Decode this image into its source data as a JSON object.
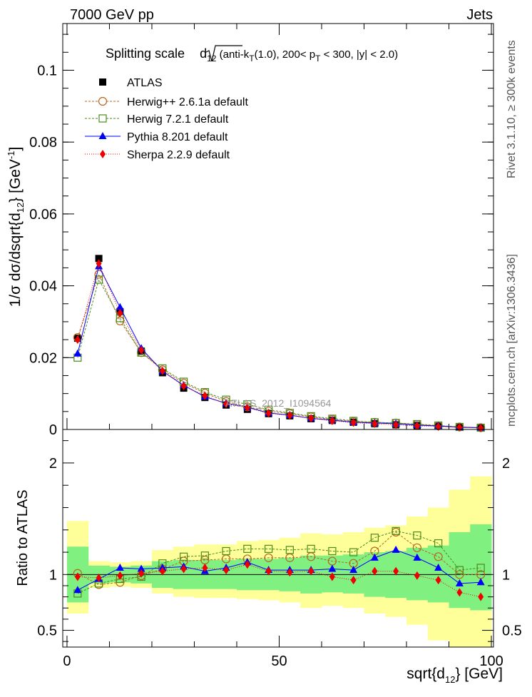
{
  "header": {
    "left": "7000 GeV pp",
    "right": "Jets"
  },
  "side_labels": {
    "top": "Rivet 3.1.10, ≥ 300k events",
    "bottom": "mcplots.cern.ch [arXiv:1306.3436]"
  },
  "watermark": "ATLAS_2012_I1094564",
  "colors": {
    "green_band": "#80f080",
    "yellow_band": "#ffff99"
  },
  "chart_data": [
    {
      "type": "line",
      "name": "main",
      "title": "Splitting scale √d12 (anti-kT(1.0), 200< pT < 300, |y| < 2.0)",
      "title_parts": {
        "pre": "Splitting scale ",
        "d": "d",
        "d_sub": "12",
        "a": " (anti-k",
        "a_sub": "T",
        "b": "(1.0), 200< p",
        "b_sub": "T",
        "c": " < 300, |y| < 2.0)"
      },
      "ylabel": "1/σ dσ/dsqrt{d12} [GeV⁻¹]",
      "ylabel_parts": {
        "pre": "1/σ dσ/dsqrt{d",
        "sub": "12",
        "mid": "} [GeV",
        "sup": "-1",
        "post": "]"
      },
      "xlim": [
        -1,
        100.5
      ],
      "ylim": [
        0,
        0.113
      ],
      "yticks": [
        0,
        0.02,
        0.04,
        0.06,
        0.08,
        0.1
      ],
      "ytick_labels": [
        "0",
        "0.02",
        "0.04",
        "0.06",
        "0.08",
        "0.1"
      ],
      "x": [
        2.5,
        7.5,
        12.5,
        17.5,
        22.5,
        27.5,
        32.5,
        37.5,
        42.5,
        47.5,
        52.5,
        57.5,
        62.5,
        67.5,
        72.5,
        77.5,
        82.5,
        87.5,
        92.5,
        97.5
      ],
      "series": [
        {
          "name": "ATLAS",
          "color": "#000000",
          "marker": "square-filled",
          "values": [
            0.0254,
            0.0476,
            0.0328,
            0.0218,
            0.0158,
            0.0115,
            0.0089,
            0.0068,
            0.0056,
            0.0044,
            0.0038,
            0.003,
            0.0025,
            0.002,
            0.0016,
            0.0013,
            0.0011,
            0.0009,
            0.0007,
            0.0005
          ]
        },
        {
          "name": "Herwig++ 2.6.1a default",
          "color": "#b5651d",
          "marker": "circle-open",
          "values": [
            0.0256,
            0.0432,
            0.0302,
            0.0214,
            0.0166,
            0.0129,
            0.0101,
            0.0078,
            0.0063,
            0.0051,
            0.0044,
            0.0035,
            0.0028,
            0.0022,
            0.002,
            0.0018,
            0.0014,
            0.001,
            0.0007,
            0.0005
          ]
        },
        {
          "name": "Herwig 7.2.1 default",
          "color": "#4b8b1a",
          "marker": "square-open",
          "values": [
            0.02,
            0.0417,
            0.031,
            0.0214,
            0.017,
            0.0133,
            0.0104,
            0.0083,
            0.007,
            0.0055,
            0.0046,
            0.0037,
            0.003,
            0.0024,
            0.002,
            0.0018,
            0.0015,
            0.0011,
            0.0007,
            0.0005
          ]
        },
        {
          "name": "Pythia 8.201 default",
          "color": "#0000ff",
          "marker": "triangle-filled",
          "values": [
            0.0211,
            0.0454,
            0.034,
            0.0226,
            0.0162,
            0.0123,
            0.0091,
            0.0073,
            0.0062,
            0.0046,
            0.004,
            0.0031,
            0.0026,
            0.002,
            0.0018,
            0.0016,
            0.0012,
            0.001,
            0.0006,
            0.0005
          ]
        },
        {
          "name": "Sherpa 2.2.9 default",
          "color": "#ee0000",
          "marker": "diamond-filled",
          "values": [
            0.025,
            0.0462,
            0.0324,
            0.0221,
            0.0163,
            0.0121,
            0.0094,
            0.0071,
            0.0061,
            0.0045,
            0.0039,
            0.0031,
            0.0024,
            0.0019,
            0.0016,
            0.0013,
            0.001,
            0.0008,
            0.0006,
            0.0004
          ]
        }
      ]
    },
    {
      "type": "line",
      "name": "ratio",
      "ylabel": "Ratio to ATLAS",
      "xlabel": "sqrt{d12} [GeV]",
      "xlabel_parts": {
        "pre": "sqrt{d",
        "sub": "12",
        "post": "} [GeV]"
      },
      "xlim": [
        -1,
        100.5
      ],
      "ylim": [
        0.35,
        2.3
      ],
      "xticks": [
        0,
        50,
        100
      ],
      "xtick_labels": [
        "0",
        "50",
        "100"
      ],
      "yticks": [
        0.5,
        1,
        2
      ],
      "ytick_labels": [
        "0.5",
        "1",
        "2"
      ],
      "x": [
        2.5,
        7.5,
        12.5,
        17.5,
        22.5,
        27.5,
        32.5,
        37.5,
        42.5,
        47.5,
        52.5,
        57.5,
        62.5,
        67.5,
        72.5,
        77.5,
        82.5,
        87.5,
        92.5,
        97.5
      ],
      "band_edges": [
        0,
        5,
        10,
        15,
        20,
        25,
        30,
        35,
        40,
        45,
        50,
        55,
        60,
        65,
        70,
        75,
        80,
        85,
        90,
        95,
        100
      ],
      "band_inner": [
        [
          0.75,
          1.25
        ],
        [
          0.92,
          1.08
        ],
        [
          0.93,
          1.07
        ],
        [
          0.92,
          1.08
        ],
        [
          0.88,
          1.12
        ],
        [
          0.87,
          1.13
        ],
        [
          0.87,
          1.13
        ],
        [
          0.87,
          1.13
        ],
        [
          0.86,
          1.14
        ],
        [
          0.86,
          1.14
        ],
        [
          0.85,
          1.15
        ],
        [
          0.83,
          1.17
        ],
        [
          0.84,
          1.17
        ],
        [
          0.83,
          1.18
        ],
        [
          0.8,
          1.2
        ],
        [
          0.79,
          1.21
        ],
        [
          0.77,
          1.24
        ],
        [
          0.75,
          1.26
        ],
        [
          0.7,
          1.38
        ],
        [
          0.68,
          1.45
        ]
      ],
      "band_outer": [
        [
          0.65,
          1.48
        ],
        [
          0.88,
          1.12
        ],
        [
          0.89,
          1.11
        ],
        [
          0.88,
          1.12
        ],
        [
          0.83,
          1.22
        ],
        [
          0.8,
          1.25
        ],
        [
          0.79,
          1.27
        ],
        [
          0.79,
          1.27
        ],
        [
          0.78,
          1.3
        ],
        [
          0.77,
          1.31
        ],
        [
          0.75,
          1.33
        ],
        [
          0.7,
          1.37
        ],
        [
          0.72,
          1.36
        ],
        [
          0.7,
          1.38
        ],
        [
          0.65,
          1.42
        ],
        [
          0.62,
          1.44
        ],
        [
          0.55,
          1.52
        ],
        [
          0.41,
          1.6
        ],
        [
          0.35,
          1.76
        ],
        [
          0.35,
          1.88
        ]
      ],
      "series": [
        {
          "name": "Herwig++ 2.6.1a default",
          "color": "#b5651d",
          "marker": "circle-open",
          "values": [
            1.01,
            0.91,
            0.93,
            0.99,
            1.05,
            1.12,
            1.13,
            1.14,
            1.14,
            1.15,
            1.15,
            1.16,
            1.12,
            1.1,
            1.21,
            1.38,
            1.24,
            1.16,
            1.0,
            1.0
          ]
        },
        {
          "name": "Herwig 7.2.1 default",
          "color": "#4b8b1a",
          "marker": "square-open",
          "values": [
            0.83,
            0.92,
            0.96,
            0.98,
            1.1,
            1.16,
            1.17,
            1.21,
            1.23,
            1.23,
            1.22,
            1.23,
            1.21,
            1.2,
            1.33,
            1.39,
            1.35,
            1.28,
            1.04,
            1.06
          ]
        },
        {
          "name": "Pythia 8.201 default",
          "color": "#0000ff",
          "marker": "triangle-filled",
          "values": [
            0.86,
            0.96,
            1.06,
            1.05,
            1.06,
            1.07,
            1.03,
            1.06,
            1.11,
            1.04,
            1.04,
            1.04,
            1.05,
            1.04,
            1.15,
            1.22,
            1.15,
            1.06,
            0.92,
            0.93
          ]
        },
        {
          "name": "Sherpa 2.2.9 default",
          "color": "#ee0000",
          "marker": "diamond-filled",
          "values": [
            0.98,
            0.97,
            0.99,
            1.01,
            1.03,
            1.05,
            1.06,
            1.04,
            1.09,
            1.03,
            1.02,
            1.03,
            0.98,
            0.95,
            1.03,
            1.03,
            0.99,
            0.95,
            0.84,
            0.8
          ]
        }
      ]
    }
  ]
}
